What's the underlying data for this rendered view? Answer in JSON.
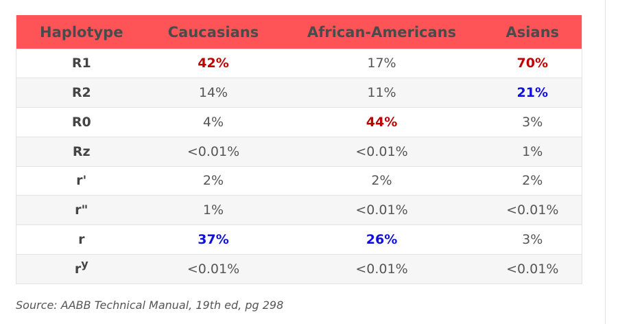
{
  "table": {
    "headers": [
      "Haplotype",
      "Caucasians",
      "African-Americans",
      "Asians"
    ],
    "rows": [
      {
        "haplotype": "R1",
        "cells": [
          {
            "value": "42%",
            "highlight": "red"
          },
          {
            "value": "17%",
            "highlight": "none"
          },
          {
            "value": "70%",
            "highlight": "red"
          }
        ]
      },
      {
        "haplotype": "R2",
        "cells": [
          {
            "value": "14%",
            "highlight": "none"
          },
          {
            "value": "11%",
            "highlight": "none"
          },
          {
            "value": "21%",
            "highlight": "blue"
          }
        ]
      },
      {
        "haplotype": "R0",
        "cells": [
          {
            "value": "4%",
            "highlight": "none"
          },
          {
            "value": "44%",
            "highlight": "red"
          },
          {
            "value": "3%",
            "highlight": "none"
          }
        ]
      },
      {
        "haplotype": "Rz",
        "cells": [
          {
            "value": "<0.01%",
            "highlight": "none"
          },
          {
            "value": "<0.01%",
            "highlight": "none"
          },
          {
            "value": "1%",
            "highlight": "none"
          }
        ]
      },
      {
        "haplotype": "r'",
        "cells": [
          {
            "value": "2%",
            "highlight": "none"
          },
          {
            "value": "2%",
            "highlight": "none"
          },
          {
            "value": "2%",
            "highlight": "none"
          }
        ]
      },
      {
        "haplotype": "r\"",
        "cells": [
          {
            "value": "1%",
            "highlight": "none"
          },
          {
            "value": "<0.01%",
            "highlight": "none"
          },
          {
            "value": "<0.01%",
            "highlight": "none"
          }
        ]
      },
      {
        "haplotype": "r",
        "cells": [
          {
            "value": "37%",
            "highlight": "blue"
          },
          {
            "value": "26%",
            "highlight": "blue"
          },
          {
            "value": "3%",
            "highlight": "none"
          }
        ]
      },
      {
        "haplotype": "r",
        "haplotype_sup": "y",
        "cells": [
          {
            "value": "<0.01%",
            "highlight": "none"
          },
          {
            "value": "<0.01%",
            "highlight": "none"
          },
          {
            "value": "<0.01%",
            "highlight": "none"
          }
        ]
      }
    ]
  },
  "source": "Source: AABB Technical Manual, 19th ed, pg 298",
  "colors": {
    "header_bg": "#ff5457",
    "red_highlight": "#c00000",
    "blue_highlight": "#1010dd"
  }
}
